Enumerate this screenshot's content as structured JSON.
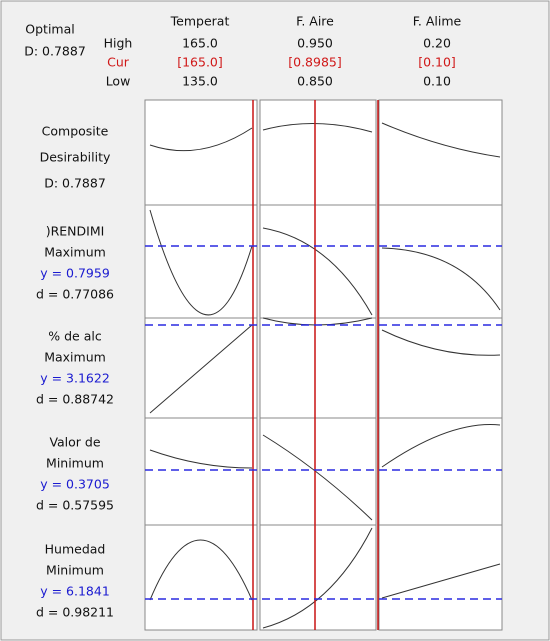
{
  "header": {
    "title": "Optimal",
    "d": "D: 0.7887",
    "row_labels": [
      "High",
      "Cur",
      "Low"
    ]
  },
  "factors": [
    {
      "name": "Temperat",
      "high": "165.0",
      "cur": "[165.0]",
      "low": "135.0"
    },
    {
      "name": "F. Aire",
      "high": "0.950",
      "cur": "[0.8985]",
      "low": "0.850"
    },
    {
      "name": "F. Alime",
      "high": "0.20",
      "cur": "[0.10]",
      "low": "0.10"
    }
  ],
  "composite": {
    "lines": [
      "Composite",
      "Desirability",
      "D: 0.7887"
    ]
  },
  "responses": [
    {
      "name": ")RENDIMI",
      "goal": "Maximum",
      "y": "y = 0.7959",
      "d": "d = 0.77086"
    },
    {
      "name": "% de alc",
      "goal": "Maximum",
      "y": "y = 3.1622",
      "d": "d = 0.88742"
    },
    {
      "name": "Valor de",
      "goal": "Minimum",
      "y": "y = 0.3705",
      "d": "d = 0.57595"
    },
    {
      "name": "Humedad",
      "goal": "Minimum",
      "y": "y = 6.1841",
      "d": "d = 0.98211"
    }
  ]
}
